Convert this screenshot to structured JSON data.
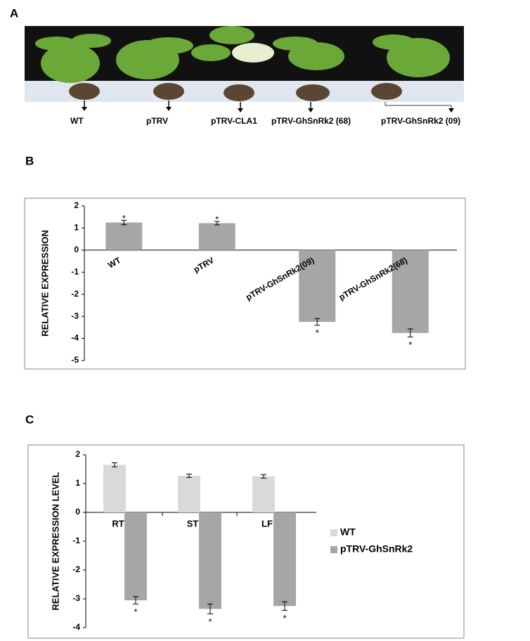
{
  "panel_labels": [
    "A",
    "B",
    "C"
  ],
  "photo_labels": [
    "WT",
    "pTRV",
    "pTRV-CLA1",
    "pTRV-GhSnRk2 (68)",
    "pTRV-GhSnRk2 (09)"
  ],
  "chart_data": [
    {
      "type": "bar",
      "ylabel": "RELATIVE EXPRESSION",
      "categories": [
        "WT",
        "pTRV",
        "pTRV-GhSnRk2(09)",
        "pTRV-GhSnRk2(68)"
      ],
      "values": [
        1.25,
        1.22,
        -3.25,
        -3.75
      ],
      "errors": [
        0.1,
        0.08,
        0.15,
        0.18
      ],
      "annotations": [
        "*",
        "*",
        "*",
        "*"
      ],
      "color": "#a6a6a6",
      "ylim": [
        -5,
        2
      ],
      "yticks": [
        -5,
        -4,
        -3,
        -2,
        -1,
        0,
        1,
        2
      ]
    },
    {
      "type": "grouped_bar",
      "ylabel": "RELATIVE EXPRESSION LEVEL",
      "categories": [
        "RT",
        "ST",
        "LF"
      ],
      "series": [
        {
          "name": "WT",
          "color": "#d9d9d9",
          "values": [
            1.65,
            1.27,
            1.25
          ],
          "errors": [
            0.07,
            0.06,
            0.06
          ]
        },
        {
          "name": "pTRV-GhSnRk2",
          "color": "#a6a6a6",
          "values": [
            -3.05,
            -3.35,
            -3.25
          ],
          "errors": [
            0.13,
            0.17,
            0.15
          ]
        }
      ],
      "annotations": [
        "*",
        "*",
        "*"
      ],
      "ylim": [
        -4,
        2
      ],
      "yticks": [
        -4,
        -3,
        -2,
        -1,
        0,
        1,
        2
      ],
      "legend": "right"
    }
  ]
}
